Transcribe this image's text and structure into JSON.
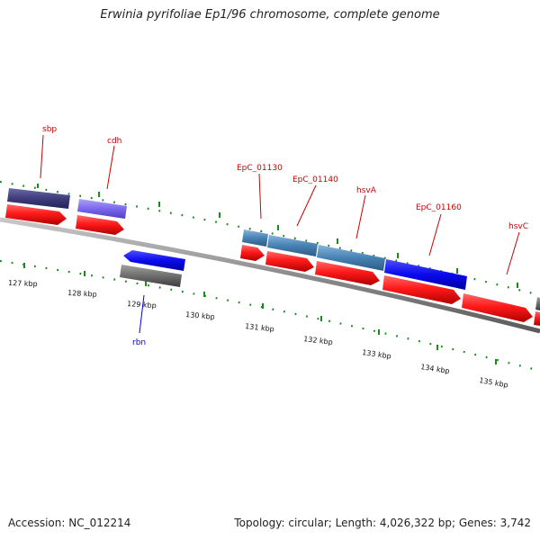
{
  "title": "Erwinia pyrifoliae Ep1/96 chromosome, complete genome",
  "footer": {
    "accession": "Accession: NC_012214",
    "summary": "Topology: circular; Length: 4,026,322 bp; Genes: 3,742"
  },
  "colors": {
    "backbone": "#8c8c8c",
    "cds_forward": "#ff1a1a",
    "label_forward": "#cc0000",
    "label_reverse": "#0000cc",
    "tick": "#1a8a1a"
  },
  "scale_labels": [
    "127 kbp",
    "128 kbp",
    "129 kbp",
    "130 kbp",
    "131 kbp",
    "132 kbp",
    "133 kbp",
    "134 kbp",
    "135 kbp"
  ],
  "gene_labels": [
    {
      "name": "sbp",
      "strand": "forward"
    },
    {
      "name": "cdh",
      "strand": "forward"
    },
    {
      "name": "EpC_01130",
      "strand": "forward"
    },
    {
      "name": "EpC_01140",
      "strand": "forward"
    },
    {
      "name": "hsvA",
      "strand": "forward"
    },
    {
      "name": "EpC_01160",
      "strand": "forward"
    },
    {
      "name": "hsvC",
      "strand": "forward"
    },
    {
      "name": "rbn",
      "strand": "reverse"
    }
  ]
}
